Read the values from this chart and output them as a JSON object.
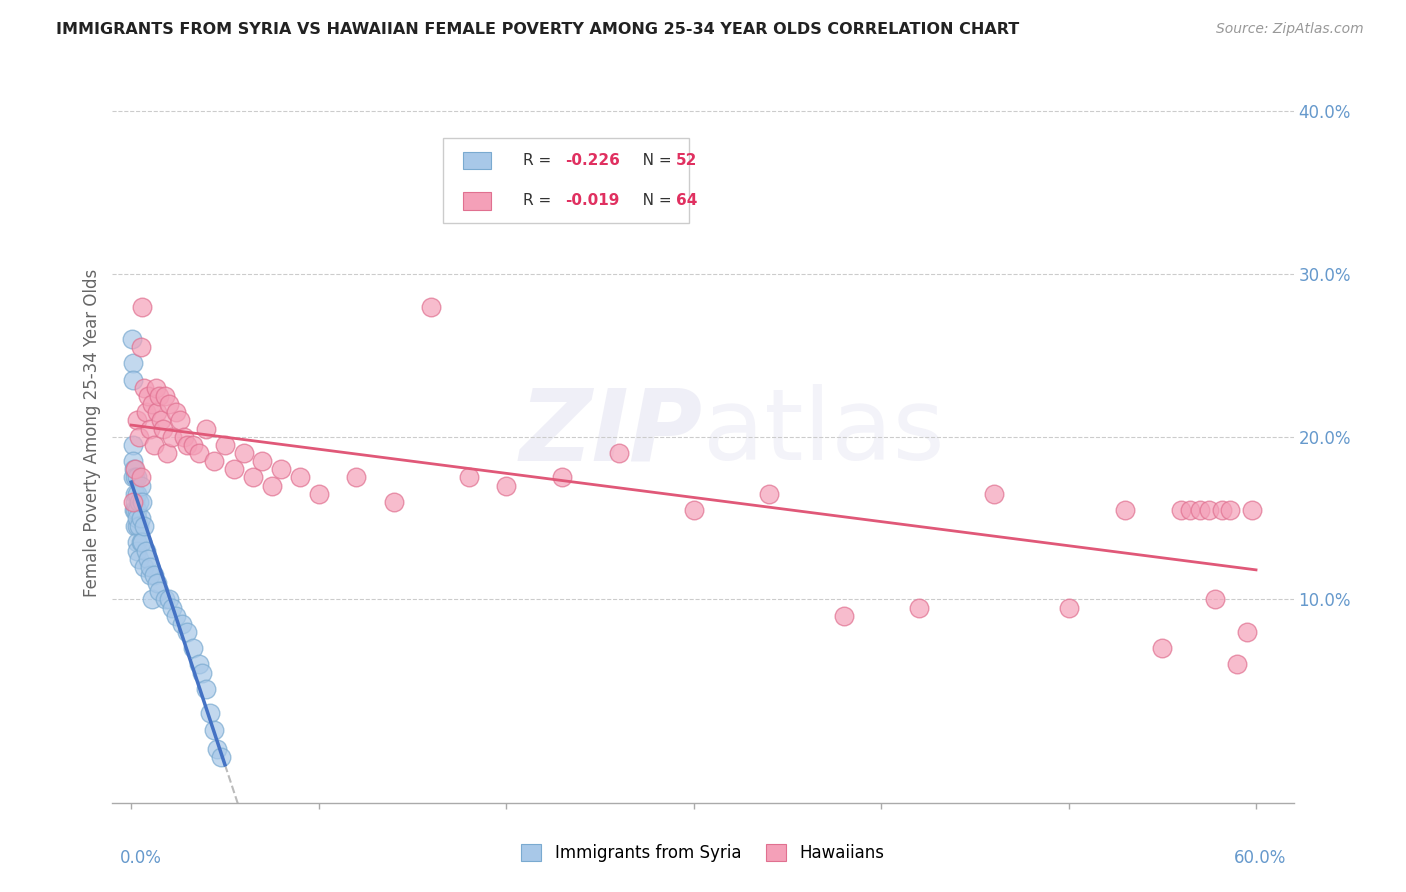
{
  "title": "IMMIGRANTS FROM SYRIA VS HAWAIIAN FEMALE POVERTY AMONG 25-34 YEAR OLDS CORRELATION CHART",
  "source": "Source: ZipAtlas.com",
  "ylabel": "Female Poverty Among 25-34 Year Olds",
  "xlim": [
    0,
    0.6
  ],
  "ylim": [
    0,
    0.42
  ],
  "blue_color": "#A8C8E8",
  "blue_edge_color": "#7AAAD0",
  "pink_color": "#F4A0B8",
  "pink_edge_color": "#E07090",
  "blue_line_color": "#4472C4",
  "pink_line_color": "#E05878",
  "dashed_line_color": "#BBBBBB",
  "watermark_color": "#CCCCDD",
  "grid_color": "#CCCCCC",
  "ytick_color": "#6699CC",
  "xtick_color": "#6699CC",
  "syria_x": [
    0.0005,
    0.0008,
    0.001,
    0.001,
    0.001,
    0.0012,
    0.0015,
    0.0015,
    0.002,
    0.002,
    0.002,
    0.002,
    0.002,
    0.003,
    0.003,
    0.003,
    0.003,
    0.003,
    0.003,
    0.003,
    0.004,
    0.004,
    0.004,
    0.005,
    0.005,
    0.005,
    0.006,
    0.006,
    0.007,
    0.007,
    0.008,
    0.009,
    0.01,
    0.01,
    0.011,
    0.012,
    0.014,
    0.015,
    0.018,
    0.02,
    0.022,
    0.024,
    0.027,
    0.03,
    0.033,
    0.036,
    0.038,
    0.04,
    0.042,
    0.044,
    0.046,
    0.048
  ],
  "syria_y": [
    0.26,
    0.245,
    0.235,
    0.175,
    0.195,
    0.185,
    0.18,
    0.155,
    0.175,
    0.165,
    0.155,
    0.145,
    0.16,
    0.175,
    0.165,
    0.155,
    0.145,
    0.135,
    0.15,
    0.13,
    0.16,
    0.145,
    0.125,
    0.17,
    0.15,
    0.135,
    0.16,
    0.135,
    0.145,
    0.12,
    0.13,
    0.125,
    0.115,
    0.12,
    0.1,
    0.115,
    0.11,
    0.105,
    0.1,
    0.1,
    0.095,
    0.09,
    0.085,
    0.08,
    0.07,
    0.06,
    0.055,
    0.045,
    0.03,
    0.02,
    0.008,
    0.003
  ],
  "hawaii_x": [
    0.001,
    0.002,
    0.003,
    0.004,
    0.005,
    0.005,
    0.006,
    0.007,
    0.008,
    0.009,
    0.01,
    0.011,
    0.012,
    0.013,
    0.014,
    0.015,
    0.016,
    0.017,
    0.018,
    0.019,
    0.02,
    0.022,
    0.024,
    0.026,
    0.028,
    0.03,
    0.033,
    0.036,
    0.04,
    0.044,
    0.05,
    0.055,
    0.06,
    0.065,
    0.07,
    0.075,
    0.08,
    0.09,
    0.1,
    0.12,
    0.14,
    0.16,
    0.18,
    0.2,
    0.23,
    0.26,
    0.3,
    0.34,
    0.38,
    0.42,
    0.46,
    0.5,
    0.53,
    0.55,
    0.56,
    0.565,
    0.57,
    0.575,
    0.578,
    0.582,
    0.586,
    0.59,
    0.595,
    0.598
  ],
  "hawaii_y": [
    0.16,
    0.18,
    0.21,
    0.2,
    0.255,
    0.175,
    0.28,
    0.23,
    0.215,
    0.225,
    0.205,
    0.22,
    0.195,
    0.23,
    0.215,
    0.225,
    0.21,
    0.205,
    0.225,
    0.19,
    0.22,
    0.2,
    0.215,
    0.21,
    0.2,
    0.195,
    0.195,
    0.19,
    0.205,
    0.185,
    0.195,
    0.18,
    0.19,
    0.175,
    0.185,
    0.17,
    0.18,
    0.175,
    0.165,
    0.175,
    0.16,
    0.28,
    0.175,
    0.17,
    0.175,
    0.19,
    0.155,
    0.165,
    0.09,
    0.095,
    0.165,
    0.095,
    0.155,
    0.07,
    0.155,
    0.155,
    0.155,
    0.155,
    0.1,
    0.155,
    0.155,
    0.06,
    0.08,
    0.155
  ]
}
